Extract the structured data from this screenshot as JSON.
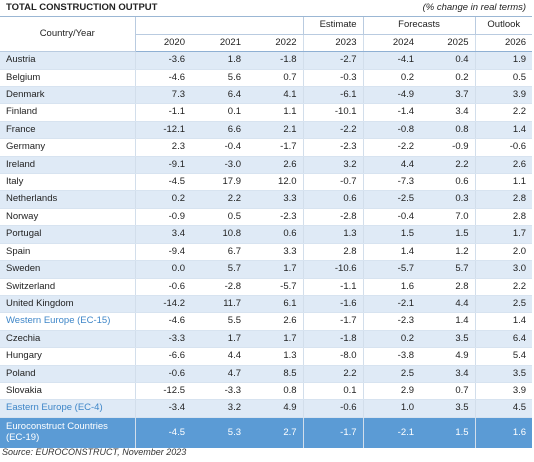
{
  "title": "TOTAL CONSTRUCTION OUTPUT",
  "subtitle": "(% change in real terms)",
  "header": {
    "country_year": "Country/Year",
    "estimate": "Estimate",
    "forecasts": "Forecasts",
    "outlook": "Outlook",
    "years": [
      "2020",
      "2021",
      "2022",
      "2023",
      "2024",
      "2025",
      "2026"
    ]
  },
  "rows": [
    {
      "name": "Austria",
      "values": [
        "-3.6",
        "1.8",
        "-1.8",
        "-2.7",
        "-4.1",
        "0.4",
        "1.9"
      ]
    },
    {
      "name": "Belgium",
      "values": [
        "-4.6",
        "5.6",
        "0.7",
        "-0.3",
        "0.2",
        "0.2",
        "0.5"
      ]
    },
    {
      "name": "Denmark",
      "values": [
        "7.3",
        "6.4",
        "4.1",
        "-6.1",
        "-4.9",
        "3.7",
        "3.9"
      ]
    },
    {
      "name": "Finland",
      "values": [
        "-1.1",
        "0.1",
        "1.1",
        "-10.1",
        "-1.4",
        "3.4",
        "2.2"
      ]
    },
    {
      "name": "France",
      "values": [
        "-12.1",
        "6.6",
        "2.1",
        "-2.2",
        "-0.8",
        "0.8",
        "1.4"
      ]
    },
    {
      "name": "Germany",
      "values": [
        "2.3",
        "-0.4",
        "-1.7",
        "-2.3",
        "-2.2",
        "-0.9",
        "-0.6"
      ]
    },
    {
      "name": "Ireland",
      "values": [
        "-9.1",
        "-3.0",
        "2.6",
        "3.2",
        "4.4",
        "2.2",
        "2.6"
      ]
    },
    {
      "name": "Italy",
      "values": [
        "-4.5",
        "17.9",
        "12.0",
        "-0.7",
        "-7.3",
        "0.6",
        "1.1"
      ]
    },
    {
      "name": "Netherlands",
      "values": [
        "0.2",
        "2.2",
        "3.3",
        "0.6",
        "-2.5",
        "0.3",
        "2.8"
      ]
    },
    {
      "name": "Norway",
      "values": [
        "-0.9",
        "0.5",
        "-2.3",
        "-2.8",
        "-0.4",
        "7.0",
        "2.8"
      ]
    },
    {
      "name": "Portugal",
      "values": [
        "3.4",
        "10.8",
        "0.6",
        "1.3",
        "1.5",
        "1.5",
        "1.7"
      ]
    },
    {
      "name": "Spain",
      "values": [
        "-9.4",
        "6.7",
        "3.3",
        "2.8",
        "1.4",
        "1.2",
        "2.0"
      ]
    },
    {
      "name": "Sweden",
      "values": [
        "0.0",
        "5.7",
        "1.7",
        "-10.6",
        "-5.7",
        "5.7",
        "3.0"
      ]
    },
    {
      "name": "Switzerland",
      "values": [
        "-0.6",
        "-2.8",
        "-5.7",
        "-1.1",
        "1.6",
        "2.8",
        "2.2"
      ]
    },
    {
      "name": "United Kingdom",
      "values": [
        "-14.2",
        "11.7",
        "6.1",
        "-1.6",
        "-2.1",
        "4.4",
        "2.5"
      ]
    },
    {
      "name": "Western Europe (EC-15)",
      "agg": true,
      "values": [
        "-4.6",
        "5.5",
        "2.6",
        "-1.7",
        "-2.3",
        "1.4",
        "1.4"
      ]
    },
    {
      "name": "Czechia",
      "values": [
        "-3.3",
        "1.7",
        "1.7",
        "-1.8",
        "0.2",
        "3.5",
        "6.4"
      ]
    },
    {
      "name": "Hungary",
      "values": [
        "-6.6",
        "4.4",
        "1.3",
        "-8.0",
        "-3.8",
        "4.9",
        "5.4"
      ]
    },
    {
      "name": "Poland",
      "values": [
        "-0.6",
        "4.7",
        "8.5",
        "2.2",
        "2.5",
        "3.4",
        "3.5"
      ]
    },
    {
      "name": "Slovakia",
      "values": [
        "-12.5",
        "-3.3",
        "0.8",
        "0.1",
        "2.9",
        "0.7",
        "3.9"
      ]
    },
    {
      "name": "Eastern Europe (EC-4)",
      "agg": true,
      "values": [
        "-3.4",
        "3.2",
        "4.9",
        "-0.6",
        "1.0",
        "3.5",
        "4.5"
      ]
    }
  ],
  "total": {
    "name": "Euroconstruct Countries (EC-19)",
    "values": [
      "-4.5",
      "5.3",
      "2.7",
      "-1.7",
      "-2.1",
      "1.5",
      "1.6"
    ]
  },
  "source": "Source: EUROCONSTRUCT, November 2023",
  "colors": {
    "accent": "#5b9bd5",
    "stripe": "#dfeaf6",
    "aggregate_text": "#3e86c8"
  }
}
